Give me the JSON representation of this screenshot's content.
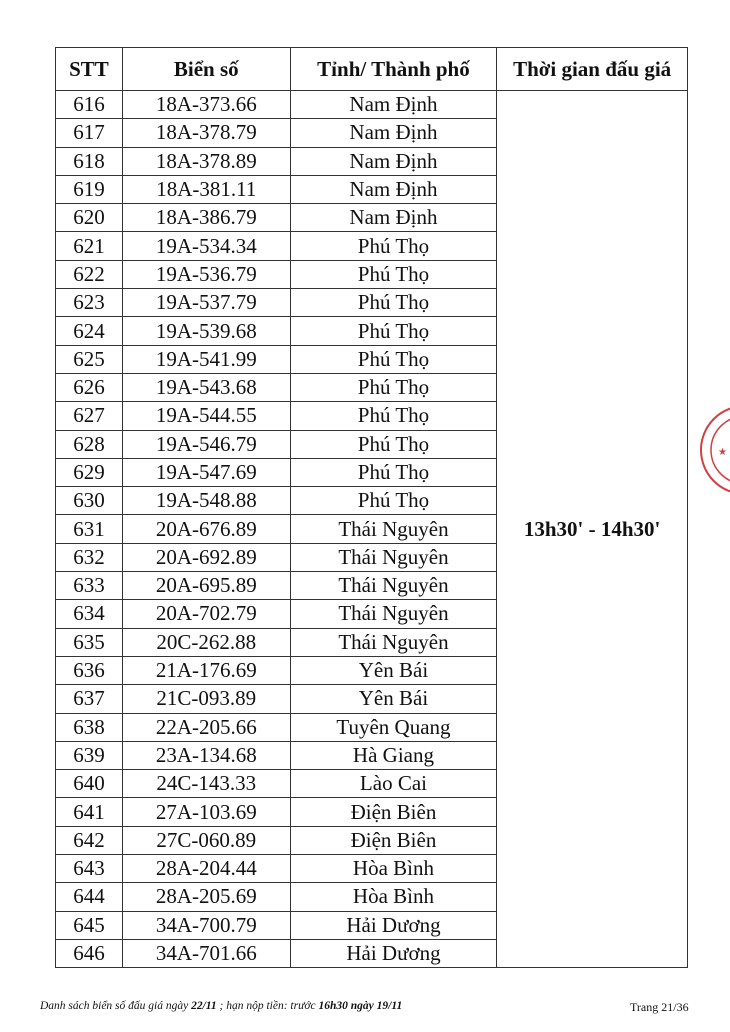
{
  "table": {
    "headers": [
      "STT",
      "Biển số",
      "Tỉnh/ Thành phố",
      "Thời gian đấu giá"
    ],
    "time": "13h30' - 14h30'",
    "rows": [
      [
        "616",
        "18A-373.66",
        "Nam Định"
      ],
      [
        "617",
        "18A-378.79",
        "Nam Định"
      ],
      [
        "618",
        "18A-378.89",
        "Nam Định"
      ],
      [
        "619",
        "18A-381.11",
        "Nam Định"
      ],
      [
        "620",
        "18A-386.79",
        "Nam Định"
      ],
      [
        "621",
        "19A-534.34",
        "Phú Thọ"
      ],
      [
        "622",
        "19A-536.79",
        "Phú Thọ"
      ],
      [
        "623",
        "19A-537.79",
        "Phú Thọ"
      ],
      [
        "624",
        "19A-539.68",
        "Phú Thọ"
      ],
      [
        "625",
        "19A-541.99",
        "Phú Thọ"
      ],
      [
        "626",
        "19A-543.68",
        "Phú Thọ"
      ],
      [
        "627",
        "19A-544.55",
        "Phú Thọ"
      ],
      [
        "628",
        "19A-546.79",
        "Phú Thọ"
      ],
      [
        "629",
        "19A-547.69",
        "Phú Thọ"
      ],
      [
        "630",
        "19A-548.88",
        "Phú Thọ"
      ],
      [
        "631",
        "20A-676.89",
        "Thái Nguyên"
      ],
      [
        "632",
        "20A-692.89",
        "Thái Nguyên"
      ],
      [
        "633",
        "20A-695.89",
        "Thái Nguyên"
      ],
      [
        "634",
        "20A-702.79",
        "Thái Nguyên"
      ],
      [
        "635",
        "20C-262.88",
        "Thái Nguyên"
      ],
      [
        "636",
        "21A-176.69",
        "Yên Bái"
      ],
      [
        "637",
        "21C-093.89",
        "Yên Bái"
      ],
      [
        "638",
        "22A-205.66",
        "Tuyên Quang"
      ],
      [
        "639",
        "23A-134.68",
        "Hà Giang"
      ],
      [
        "640",
        "24C-143.33",
        "Lào Cai"
      ],
      [
        "641",
        "27A-103.69",
        "Điện Biên"
      ],
      [
        "642",
        "27C-060.89",
        "Điện Biên"
      ],
      [
        "643",
        "28A-204.44",
        "Hòa Bình"
      ],
      [
        "644",
        "28A-205.69",
        "Hòa Bình"
      ],
      [
        "645",
        "34A-700.79",
        "Hải Dương"
      ],
      [
        "646",
        "34A-701.66",
        "Hải Dương"
      ]
    ]
  },
  "footer": {
    "text_prefix": "Danh sách biển số đấu giá ngày ",
    "date": "22/11",
    "text_mid": " ; hạn nộp tiền: trước ",
    "deadline": "16h30 ngày 19/11",
    "page": "Trang 21/36"
  },
  "stamp_color": "#d04040"
}
